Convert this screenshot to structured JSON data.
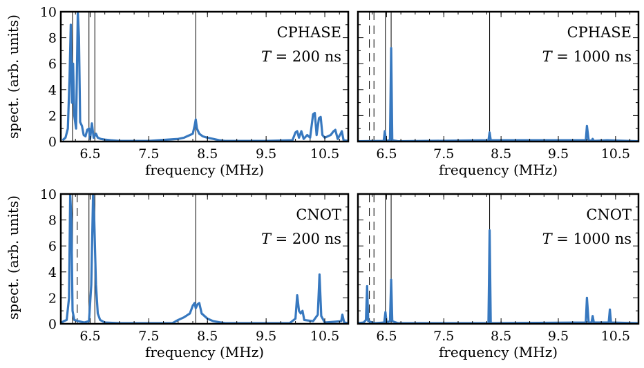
{
  "figure": {
    "ylabel_top": "spect. (arb. units)",
    "ylabel_bottom": "spect. (arb. units)"
  },
  "colors": {
    "series": "#3778bf",
    "axis": "#000000",
    "marker_line": "#000000"
  },
  "chart_data": [
    {
      "type": "line",
      "panel": "top-left",
      "xlabel": "frequency (MHz)",
      "ylabel": "spect. (arb. units)",
      "xlim": [
        6.0,
        10.9
      ],
      "ylim": [
        0,
        10
      ],
      "xticks": [
        "6.5",
        "7.5",
        "8.5",
        "9.5",
        "10.5"
      ],
      "yticks": [
        "0",
        "2",
        "4",
        "6",
        "8",
        "10"
      ],
      "annotation": {
        "line1": "CPHASE",
        "line2_var": "T",
        "line2_eq": " = 200 ns"
      },
      "vlines": [
        {
          "x": 6.2,
          "style": "solid"
        },
        {
          "x": 6.48,
          "style": "solid"
        },
        {
          "x": 6.58,
          "style": "solid"
        },
        {
          "x": 8.3,
          "style": "solid"
        }
      ],
      "series": [
        {
          "values": [
            [
              6.03,
              0.1
            ],
            [
              6.08,
              0.3
            ],
            [
              6.12,
              1.0
            ],
            [
              6.15,
              5.0
            ],
            [
              6.17,
              9.0
            ],
            [
              6.19,
              3.0
            ],
            [
              6.21,
              6.0
            ],
            [
              6.23,
              2.0
            ],
            [
              6.26,
              1.0
            ],
            [
              6.29,
              10.0
            ],
            [
              6.31,
              8.0
            ],
            [
              6.33,
              1.5
            ],
            [
              6.36,
              1.2
            ],
            [
              6.39,
              0.5
            ],
            [
              6.42,
              0.4
            ],
            [
              6.45,
              0.9
            ],
            [
              6.48,
              1.0
            ],
            [
              6.5,
              0.2
            ],
            [
              6.53,
              1.4
            ],
            [
              6.56,
              0.3
            ],
            [
              6.6,
              0.6
            ],
            [
              6.63,
              0.3
            ],
            [
              6.68,
              0.2
            ],
            [
              6.75,
              0.15
            ],
            [
              6.85,
              0.1
            ],
            [
              7.0,
              0.05
            ],
            [
              7.5,
              0.05
            ],
            [
              8.0,
              0.2
            ],
            [
              8.1,
              0.3
            ],
            [
              8.15,
              0.4
            ],
            [
              8.2,
              0.5
            ],
            [
              8.25,
              0.6
            ],
            [
              8.28,
              1.2
            ],
            [
              8.3,
              1.7
            ],
            [
              8.32,
              1.0
            ],
            [
              8.36,
              0.6
            ],
            [
              8.42,
              0.4
            ],
            [
              8.5,
              0.3
            ],
            [
              8.6,
              0.2
            ],
            [
              8.7,
              0.1
            ],
            [
              8.8,
              0.05
            ],
            [
              9.5,
              0.05
            ],
            [
              9.95,
              0.1
            ],
            [
              10.0,
              0.7
            ],
            [
              10.03,
              0.8
            ],
            [
              10.06,
              0.3
            ],
            [
              10.1,
              0.8
            ],
            [
              10.14,
              0.2
            ],
            [
              10.2,
              0.5
            ],
            [
              10.25,
              0.3
            ],
            [
              10.3,
              2.1
            ],
            [
              10.33,
              2.2
            ],
            [
              10.36,
              0.5
            ],
            [
              10.4,
              1.8
            ],
            [
              10.43,
              1.9
            ],
            [
              10.46,
              0.5
            ],
            [
              10.5,
              0.3
            ],
            [
              10.6,
              0.5
            ],
            [
              10.65,
              0.8
            ],
            [
              10.68,
              0.9
            ],
            [
              10.72,
              0.2
            ],
            [
              10.77,
              0.6
            ],
            [
              10.79,
              0.8
            ],
            [
              10.82,
              0.1
            ],
            [
              10.9,
              0.05
            ]
          ]
        }
      ]
    },
    {
      "type": "line",
      "panel": "top-right",
      "xlabel": "frequency (MHz)",
      "ylabel": "",
      "xlim": [
        6.0,
        10.9
      ],
      "ylim": [
        0,
        10
      ],
      "xticks": [
        "6.5",
        "7.5",
        "8.5",
        "9.5",
        "10.5"
      ],
      "yticks": [],
      "annotation": {
        "line1": "CPHASE",
        "line2_var": "T",
        "line2_eq": " = 1000 ns"
      },
      "vlines": [
        {
          "x": 6.2,
          "style": "dashed"
        },
        {
          "x": 6.28,
          "style": "dashed"
        },
        {
          "x": 6.48,
          "style": "solid"
        },
        {
          "x": 6.58,
          "style": "solid"
        },
        {
          "x": 8.3,
          "style": "solid"
        }
      ],
      "series": [
        {
          "values": [
            [
              6.0,
              0.02
            ],
            [
              6.45,
              0.05
            ],
            [
              6.47,
              0.8
            ],
            [
              6.49,
              0.05
            ],
            [
              6.56,
              0.1
            ],
            [
              6.58,
              7.2
            ],
            [
              6.6,
              0.1
            ],
            [
              6.7,
              0.02
            ],
            [
              8.28,
              0.1
            ],
            [
              8.3,
              0.7
            ],
            [
              8.32,
              0.1
            ],
            [
              9.98,
              0.1
            ],
            [
              10.0,
              1.2
            ],
            [
              10.03,
              0.1
            ],
            [
              10.08,
              0.05
            ],
            [
              10.1,
              0.2
            ],
            [
              10.12,
              0.05
            ],
            [
              10.35,
              0.1
            ],
            [
              10.9,
              0.02
            ]
          ]
        }
      ]
    },
    {
      "type": "line",
      "panel": "bottom-left",
      "xlabel": "frequency (MHz)",
      "ylabel": "spect. (arb. units)",
      "xlim": [
        6.0,
        10.9
      ],
      "ylim": [
        0,
        10
      ],
      "xticks": [
        "6.5",
        "7.5",
        "8.5",
        "9.5",
        "10.5"
      ],
      "yticks": [
        "0",
        "2",
        "4",
        "6",
        "8",
        "10"
      ],
      "annotation": {
        "line1": "CNOT",
        "line2_var": "T",
        "line2_eq": " = 200 ns"
      },
      "vlines": [
        {
          "x": 6.2,
          "style": "solid"
        },
        {
          "x": 6.28,
          "style": "dashed"
        },
        {
          "x": 6.48,
          "style": "solid"
        },
        {
          "x": 6.58,
          "style": "solid"
        },
        {
          "x": 8.3,
          "style": "solid"
        }
      ],
      "series": [
        {
          "values": [
            [
              6.0,
              0.05
            ],
            [
              6.05,
              0.2
            ],
            [
              6.1,
              0.3
            ],
            [
              6.14,
              2.0
            ],
            [
              6.16,
              10.0
            ],
            [
              6.18,
              8.0
            ],
            [
              6.2,
              1.0
            ],
            [
              6.23,
              0.3
            ],
            [
              6.3,
              0.2
            ],
            [
              6.4,
              0.1
            ],
            [
              6.48,
              0.2
            ],
            [
              6.52,
              3.0
            ],
            [
              6.55,
              10.0
            ],
            [
              6.57,
              8.0
            ],
            [
              6.6,
              3.0
            ],
            [
              6.63,
              0.8
            ],
            [
              6.67,
              0.3
            ],
            [
              6.75,
              0.1
            ],
            [
              7.0,
              0.05
            ],
            [
              7.9,
              0.05
            ],
            [
              8.0,
              0.3
            ],
            [
              8.1,
              0.5
            ],
            [
              8.2,
              0.8
            ],
            [
              8.25,
              1.4
            ],
            [
              8.28,
              1.6
            ],
            [
              8.3,
              1.2
            ],
            [
              8.33,
              1.5
            ],
            [
              8.36,
              1.6
            ],
            [
              8.4,
              0.8
            ],
            [
              8.5,
              0.4
            ],
            [
              8.6,
              0.2
            ],
            [
              8.8,
              0.05
            ],
            [
              9.9,
              0.05
            ],
            [
              10.0,
              0.4
            ],
            [
              10.03,
              2.2
            ],
            [
              10.06,
              1.0
            ],
            [
              10.09,
              0.8
            ],
            [
              10.12,
              1.0
            ],
            [
              10.15,
              0.3
            ],
            [
              10.3,
              0.2
            ],
            [
              10.38,
              0.7
            ],
            [
              10.41,
              3.8
            ],
            [
              10.44,
              0.6
            ],
            [
              10.5,
              0.1
            ],
            [
              10.78,
              0.2
            ],
            [
              10.8,
              0.7
            ],
            [
              10.83,
              0.1
            ],
            [
              10.9,
              0.05
            ]
          ]
        }
      ]
    },
    {
      "type": "line",
      "panel": "bottom-right",
      "xlabel": "frequency (MHz)",
      "ylabel": "",
      "xlim": [
        6.0,
        10.9
      ],
      "ylim": [
        0,
        10
      ],
      "xticks": [
        "6.5",
        "7.5",
        "8.5",
        "9.5",
        "10.5"
      ],
      "yticks": [],
      "annotation": {
        "line1": "CNOT",
        "line2_var": "T",
        "line2_eq": " = 1000 ns"
      },
      "vlines": [
        {
          "x": 6.2,
          "style": "dashed"
        },
        {
          "x": 6.28,
          "style": "dashed"
        },
        {
          "x": 6.48,
          "style": "solid"
        },
        {
          "x": 6.58,
          "style": "solid"
        },
        {
          "x": 8.3,
          "style": "solid"
        }
      ],
      "series": [
        {
          "values": [
            [
              6.0,
              0.05
            ],
            [
              6.1,
              0.1
            ],
            [
              6.14,
              0.3
            ],
            [
              6.16,
              2.9
            ],
            [
              6.18,
              0.2
            ],
            [
              6.3,
              0.05
            ],
            [
              6.46,
              0.1
            ],
            [
              6.48,
              0.9
            ],
            [
              6.5,
              0.1
            ],
            [
              6.56,
              0.2
            ],
            [
              6.58,
              3.4
            ],
            [
              6.6,
              0.2
            ],
            [
              6.7,
              0.05
            ],
            [
              8.28,
              0.05
            ],
            [
              8.3,
              7.2
            ],
            [
              8.32,
              0.05
            ],
            [
              9.98,
              0.1
            ],
            [
              10.0,
              2.0
            ],
            [
              10.03,
              0.1
            ],
            [
              10.08,
              0.1
            ],
            [
              10.1,
              0.6
            ],
            [
              10.12,
              0.1
            ],
            [
              10.38,
              0.1
            ],
            [
              10.4,
              1.1
            ],
            [
              10.42,
              0.1
            ],
            [
              10.9,
              0.05
            ]
          ]
        }
      ]
    }
  ]
}
